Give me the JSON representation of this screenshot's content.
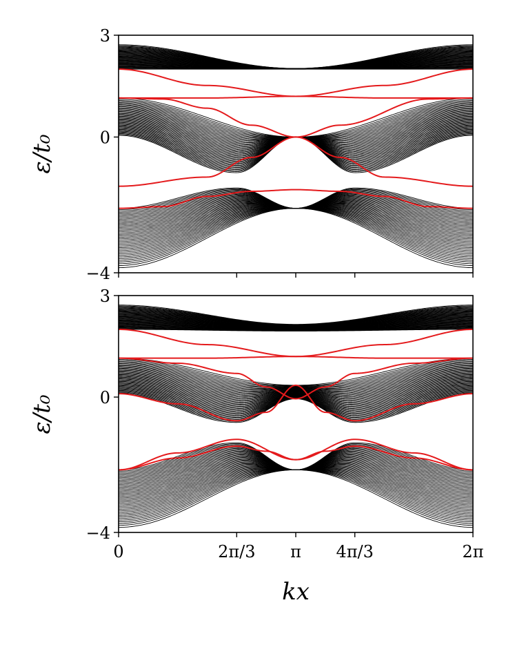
{
  "chart_data": [
    {
      "type": "line",
      "panel": "top",
      "xlim": [
        0,
        6.2832
      ],
      "ylim": [
        -4,
        3
      ],
      "ylabel": "ε/t₀",
      "xlabel": "",
      "yticks": [
        {
          "value": 3,
          "label": "3"
        },
        {
          "value": 0,
          "label": "0"
        },
        {
          "value": -4,
          "label": "−4"
        }
      ],
      "xticks": [
        {
          "value": 0,
          "label": ""
        },
        {
          "value": 2.0944,
          "label": ""
        },
        {
          "value": 3.1416,
          "label": ""
        },
        {
          "value": 4.1888,
          "label": ""
        },
        {
          "value": 6.2832,
          "label": ""
        }
      ],
      "bulk_bands": [
        {
          "name": "upper",
          "color": "#000000",
          "lines": 40,
          "outer_edge": [
            {
              "x": 0,
              "y": 2.72
            },
            {
              "x": 3.1416,
              "y": 2.02
            },
            {
              "x": 6.2832,
              "y": 2.72
            }
          ],
          "inner_edge": [
            {
              "x": 0,
              "y": 2.0
            },
            {
              "x": 3.1416,
              "y": 2.0
            },
            {
              "x": 6.2832,
              "y": 2.0
            }
          ]
        },
        {
          "name": "middle",
          "color": "#000000",
          "lines": 40,
          "outer_edge": [
            {
              "x": 0,
              "y": 1.15
            },
            {
              "x": 3.1416,
              "y": 0.0
            },
            {
              "x": 6.2832,
              "y": 1.15
            }
          ],
          "inner_edge": [
            {
              "x": 0,
              "y": 0.05
            },
            {
              "x": 2.0944,
              "y": -1.05
            },
            {
              "x": 3.1416,
              "y": 0.0
            },
            {
              "x": 4.1888,
              "y": -1.05
            },
            {
              "x": 6.2832,
              "y": 0.05
            }
          ]
        },
        {
          "name": "lower",
          "color": "#000000",
          "lines": 40,
          "outer_edge": [
            {
              "x": 0,
              "y": -3.85
            },
            {
              "x": 3.1416,
              "y": -2.1
            },
            {
              "x": 6.2832,
              "y": -3.85
            }
          ],
          "inner_edge": [
            {
              "x": 0,
              "y": -2.1
            },
            {
              "x": 2.0944,
              "y": -1.5
            },
            {
              "x": 3.1416,
              "y": -2.1
            },
            {
              "x": 4.1888,
              "y": -1.5
            },
            {
              "x": 6.2832,
              "y": -2.1
            }
          ]
        }
      ],
      "edge_states": {
        "color": "#e41a1c",
        "series": [
          {
            "x": [
              0,
              1.5708,
              3.1416,
              4.7124,
              6.2832
            ],
            "y": [
              2.0,
              1.52,
              1.2,
              1.15,
              1.15
            ]
          },
          {
            "x": [
              0,
              1.5708,
              3.1416,
              4.7124,
              6.2832
            ],
            "y": [
              1.15,
              1.15,
              1.2,
              1.52,
              2.0
            ]
          },
          {
            "x": [
              0,
              0.7854,
              1.5708,
              2.3562,
              3.1416,
              3.927,
              4.7124,
              6.2832
            ],
            "y": [
              1.15,
              1.12,
              0.85,
              0.35,
              0.0,
              -0.6,
              -1.18,
              -1.45
            ]
          },
          {
            "x": [
              0,
              1.5708,
              2.3562,
              3.1416,
              3.927,
              5.4978,
              6.2832
            ],
            "y": [
              -1.45,
              -1.18,
              -0.6,
              0.0,
              0.35,
              1.12,
              1.15
            ]
          },
          {
            "x": [
              0,
              0.7854,
              1.5708,
              2.3562,
              3.1416,
              3.927,
              4.7124,
              5.4978,
              6.2832
            ],
            "y": [
              -2.1,
              -2.05,
              -1.75,
              -1.6,
              -1.55,
              -1.6,
              -1.75,
              -2.05,
              -2.1
            ]
          }
        ]
      }
    },
    {
      "type": "line",
      "panel": "bottom",
      "xlim": [
        0,
        6.2832
      ],
      "ylim": [
        -4,
        3
      ],
      "ylabel": "ε/t₀",
      "xlabel": "kx",
      "yticks": [
        {
          "value": 3,
          "label": "3"
        },
        {
          "value": 0,
          "label": "0"
        },
        {
          "value": -4,
          "label": "−4"
        }
      ],
      "xticks": [
        {
          "value": 0,
          "label": "0"
        },
        {
          "value": 2.0944,
          "label": "2π/3"
        },
        {
          "value": 3.1416,
          "label": "π"
        },
        {
          "value": 4.1888,
          "label": "4π/3"
        },
        {
          "value": 6.2832,
          "label": "2π"
        }
      ],
      "bulk_bands": [
        {
          "name": "upper",
          "color": "#000000",
          "lines": 40,
          "outer_edge": [
            {
              "x": 0,
              "y": 2.72
            },
            {
              "x": 3.1416,
              "y": 2.15
            },
            {
              "x": 6.2832,
              "y": 2.72
            }
          ],
          "inner_edge": [
            {
              "x": 0,
              "y": 2.0
            },
            {
              "x": 3.1416,
              "y": 1.95
            },
            {
              "x": 6.2832,
              "y": 2.0
            }
          ]
        },
        {
          "name": "middle",
          "color": "#000000",
          "lines": 40,
          "outer_edge": [
            {
              "x": 0,
              "y": 1.15
            },
            {
              "x": 3.1416,
              "y": 0.35
            },
            {
              "x": 6.2832,
              "y": 1.15
            }
          ],
          "inner_edge": [
            {
              "x": 0,
              "y": 0.1
            },
            {
              "x": 2.0944,
              "y": -0.75
            },
            {
              "x": 3.1416,
              "y": -0.05
            },
            {
              "x": 4.1888,
              "y": -0.75
            },
            {
              "x": 6.2832,
              "y": 0.1
            }
          ]
        },
        {
          "name": "lower",
          "color": "#000000",
          "lines": 40,
          "outer_edge": [
            {
              "x": 0,
              "y": -3.85
            },
            {
              "x": 3.1416,
              "y": -2.15
            },
            {
              "x": 6.2832,
              "y": -3.85
            }
          ],
          "inner_edge": [
            {
              "x": 0,
              "y": -2.15
            },
            {
              "x": 2.0944,
              "y": -1.35
            },
            {
              "x": 3.1416,
              "y": -2.15
            },
            {
              "x": 4.1888,
              "y": -1.35
            },
            {
              "x": 6.2832,
              "y": -2.15
            }
          ]
        }
      ],
      "edge_states": {
        "color": "#e41a1c",
        "series": [
          {
            "x": [
              0,
              1.5708,
              3.1416,
              4.7124,
              6.2832
            ],
            "y": [
              2.0,
              1.55,
              1.2,
              1.15,
              1.15
            ]
          },
          {
            "x": [
              0,
              1.5708,
              3.1416,
              4.7124,
              6.2832
            ],
            "y": [
              1.15,
              1.15,
              1.2,
              1.55,
              2.0
            ]
          },
          {
            "x": [
              0,
              1.0472,
              2.0944,
              2.618,
              3.1416,
              3.6652,
              4.1888,
              5.236,
              6.2832
            ],
            "y": [
              0.1,
              -0.2,
              -0.7,
              -0.45,
              0.35,
              -0.45,
              -0.7,
              -0.2,
              0.1
            ]
          },
          {
            "x": [
              0,
              1.0472,
              2.0944,
              2.618,
              3.1416,
              3.6652,
              4.1888,
              5.236,
              6.2832
            ],
            "y": [
              1.15,
              1.0,
              0.7,
              0.3,
              -0.05,
              0.3,
              0.7,
              1.0,
              1.15
            ]
          },
          {
            "x": [
              0,
              1.0472,
              2.0944,
              2.618,
              3.1416,
              3.6652,
              4.1888,
              5.236,
              6.2832
            ],
            "y": [
              -2.15,
              -1.8,
              -1.45,
              -1.6,
              -1.85,
              -1.6,
              -1.45,
              -1.8,
              -2.15
            ]
          },
          {
            "x": [
              0,
              1.0472,
              2.0944,
              3.1416,
              4.1888,
              5.236,
              6.2832
            ],
            "y": [
              -2.15,
              -1.65,
              -1.25,
              -1.85,
              -1.25,
              -1.65,
              -2.15
            ]
          }
        ]
      }
    }
  ]
}
